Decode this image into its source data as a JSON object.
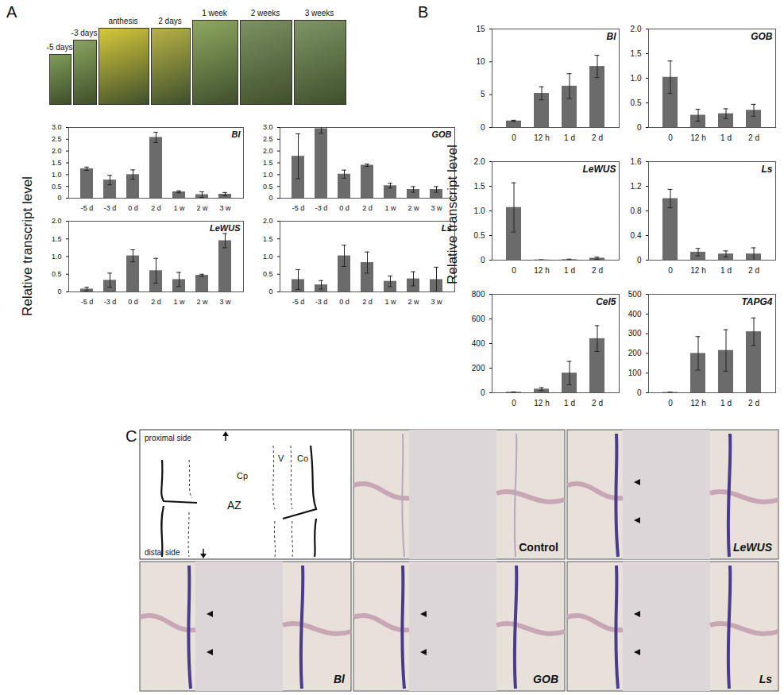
{
  "panel_labels": [
    "A",
    "B",
    "C"
  ],
  "shared_ylabel": "Relative transcript level",
  "photo_labels": [
    "-5 days",
    "-3 days",
    "anthesis",
    "2 days",
    "1 week",
    "2 weeks",
    "3 weeks"
  ],
  "chart_data": [
    {
      "type": "bar",
      "title": "Bl",
      "categories": [
        "-5 d",
        "-3 d",
        "0 d",
        "2 d",
        "1 w",
        "2 w",
        "3 w"
      ],
      "values": [
        1.25,
        0.77,
        1.0,
        2.58,
        0.27,
        0.15,
        0.17
      ],
      "errors": [
        0.07,
        0.2,
        0.2,
        0.22,
        0.04,
        0.12,
        0.07
      ],
      "color": "#6b6b6b",
      "ylim": [
        0,
        3
      ],
      "yticks": [
        0,
        0.5,
        {
          "value": 1,
          "label": "1.0"
        },
        1.5,
        {
          "value": 2,
          "label": "2.0"
        },
        2.5,
        {
          "value": 3,
          "label": "3.0"
        }
      ]
    },
    {
      "type": "bar",
      "title": "GOB",
      "categories": [
        "-5 d",
        "-3 d",
        "0 d",
        "2 d",
        "1 w",
        "2 w",
        "3 w"
      ],
      "values": [
        1.78,
        2.95,
        1.02,
        1.4,
        0.53,
        0.37,
        0.37
      ],
      "errors": [
        0.95,
        0.2,
        0.17,
        0.05,
        0.1,
        0.12,
        0.12
      ],
      "color": "#6b6b6b",
      "ylim": [
        0,
        3
      ],
      "yticks": [
        0,
        0.5,
        {
          "value": 1,
          "label": "1.0"
        },
        1.5,
        {
          "value": 2,
          "label": "2.0"
        },
        2.5,
        {
          "value": 3,
          "label": "3.0"
        }
      ]
    },
    {
      "type": "bar",
      "title": "LeWUS",
      "categories": [
        "-5 d",
        "-3 d",
        "0 d",
        "2 d",
        "1 w",
        "2 w",
        "3 w"
      ],
      "values": [
        0.08,
        0.33,
        1.02,
        0.6,
        0.35,
        0.47,
        1.45
      ],
      "errors": [
        0.05,
        0.2,
        0.17,
        0.35,
        0.2,
        0.03,
        0.2
      ],
      "color": "#6b6b6b",
      "ylim": [
        0,
        2
      ],
      "yticks": [
        0,
        0.5,
        {
          "value": 1,
          "label": "1.0"
        },
        1.5,
        {
          "value": 2,
          "label": "2.0"
        }
      ]
    },
    {
      "type": "bar",
      "title": "Ls",
      "categories": [
        "-5 d",
        "-3 d",
        "0 d",
        "2 d",
        "1 w",
        "2 w",
        "3 w"
      ],
      "values": [
        0.35,
        0.2,
        1.02,
        0.83,
        0.3,
        0.37,
        0.35
      ],
      "errors": [
        0.28,
        0.12,
        0.3,
        0.3,
        0.15,
        0.2,
        0.35
      ],
      "color": "#6b6b6b",
      "ylim": [
        0,
        2
      ],
      "yticks": [
        0,
        0.5,
        {
          "value": 1,
          "label": "1.0"
        },
        1.5,
        {
          "value": 2,
          "label": "2.0"
        }
      ]
    },
    {
      "type": "bar",
      "title": "Bl",
      "categories": [
        "0",
        "12 h",
        "1 d",
        "2 d"
      ],
      "values": [
        1.0,
        5.2,
        6.3,
        9.3
      ],
      "errors": [
        0.1,
        1.0,
        1.9,
        1.7
      ],
      "color": "#6b6b6b",
      "ylim": [
        0,
        15
      ],
      "yticks": [
        0,
        5,
        10,
        15
      ]
    },
    {
      "type": "bar",
      "title": "GOB",
      "categories": [
        "0",
        "12 h",
        "1 d",
        "2 d"
      ],
      "values": [
        1.02,
        0.25,
        0.28,
        0.35
      ],
      "errors": [
        0.33,
        0.12,
        0.1,
        0.12
      ],
      "color": "#6b6b6b",
      "ylim": [
        0,
        2
      ],
      "yticks": [
        0,
        0.5,
        {
          "value": 1,
          "label": "1.0"
        },
        1.5,
        {
          "value": 2,
          "label": "2.0"
        }
      ]
    },
    {
      "type": "bar",
      "title": "LeWUS",
      "categories": [
        "0",
        "12 h",
        "1 d",
        "2 d"
      ],
      "values": [
        1.07,
        0.005,
        0.01,
        0.04
      ],
      "errors": [
        0.5,
        0,
        0.01,
        0.02
      ],
      "color": "#6b6b6b",
      "ylim": [
        0,
        2
      ],
      "yticks": [
        0,
        0.5,
        {
          "value": 1,
          "label": "1.0"
        },
        1.5,
        {
          "value": 2,
          "label": "2.0"
        }
      ]
    },
    {
      "type": "bar",
      "title": "Ls",
      "categories": [
        "0",
        "12 h",
        "1 d",
        "2 d"
      ],
      "values": [
        1.0,
        0.13,
        0.1,
        0.1
      ],
      "errors": [
        0.15,
        0.06,
        0.05,
        0.1
      ],
      "color": "#6b6b6b",
      "ylim": [
        0,
        1.6
      ],
      "yticks": [
        0,
        0.4,
        0.8,
        1.2,
        1.6
      ]
    },
    {
      "type": "bar",
      "title": "Cel5",
      "categories": [
        "0",
        "12 h",
        "1 d",
        "2 d"
      ],
      "values": [
        5,
        30,
        160,
        440
      ],
      "errors": [
        2,
        12,
        95,
        105
      ],
      "color": "#6b6b6b",
      "ylim": [
        0,
        800
      ],
      "yticks": [
        0,
        200,
        400,
        600,
        800
      ]
    },
    {
      "type": "bar",
      "title": "TAPG4",
      "categories": [
        "0",
        "12 h",
        "1 d",
        "2 d"
      ],
      "values": [
        2,
        200,
        215,
        310
      ],
      "errors": [
        1,
        85,
        105,
        70
      ],
      "color": "#6b6b6b",
      "ylim": [
        0,
        500
      ],
      "yticks": [
        0,
        100,
        200,
        300,
        400,
        500
      ]
    }
  ],
  "panel_c": {
    "schematic_labels": {
      "proximal": "proximal side",
      "distal": "distal side",
      "cp": "Cp",
      "v": "V",
      "co": "Co",
      "az": "AZ"
    },
    "images": [
      "Control",
      "LeWUS",
      "Bl",
      "GOB",
      "Ls"
    ]
  }
}
